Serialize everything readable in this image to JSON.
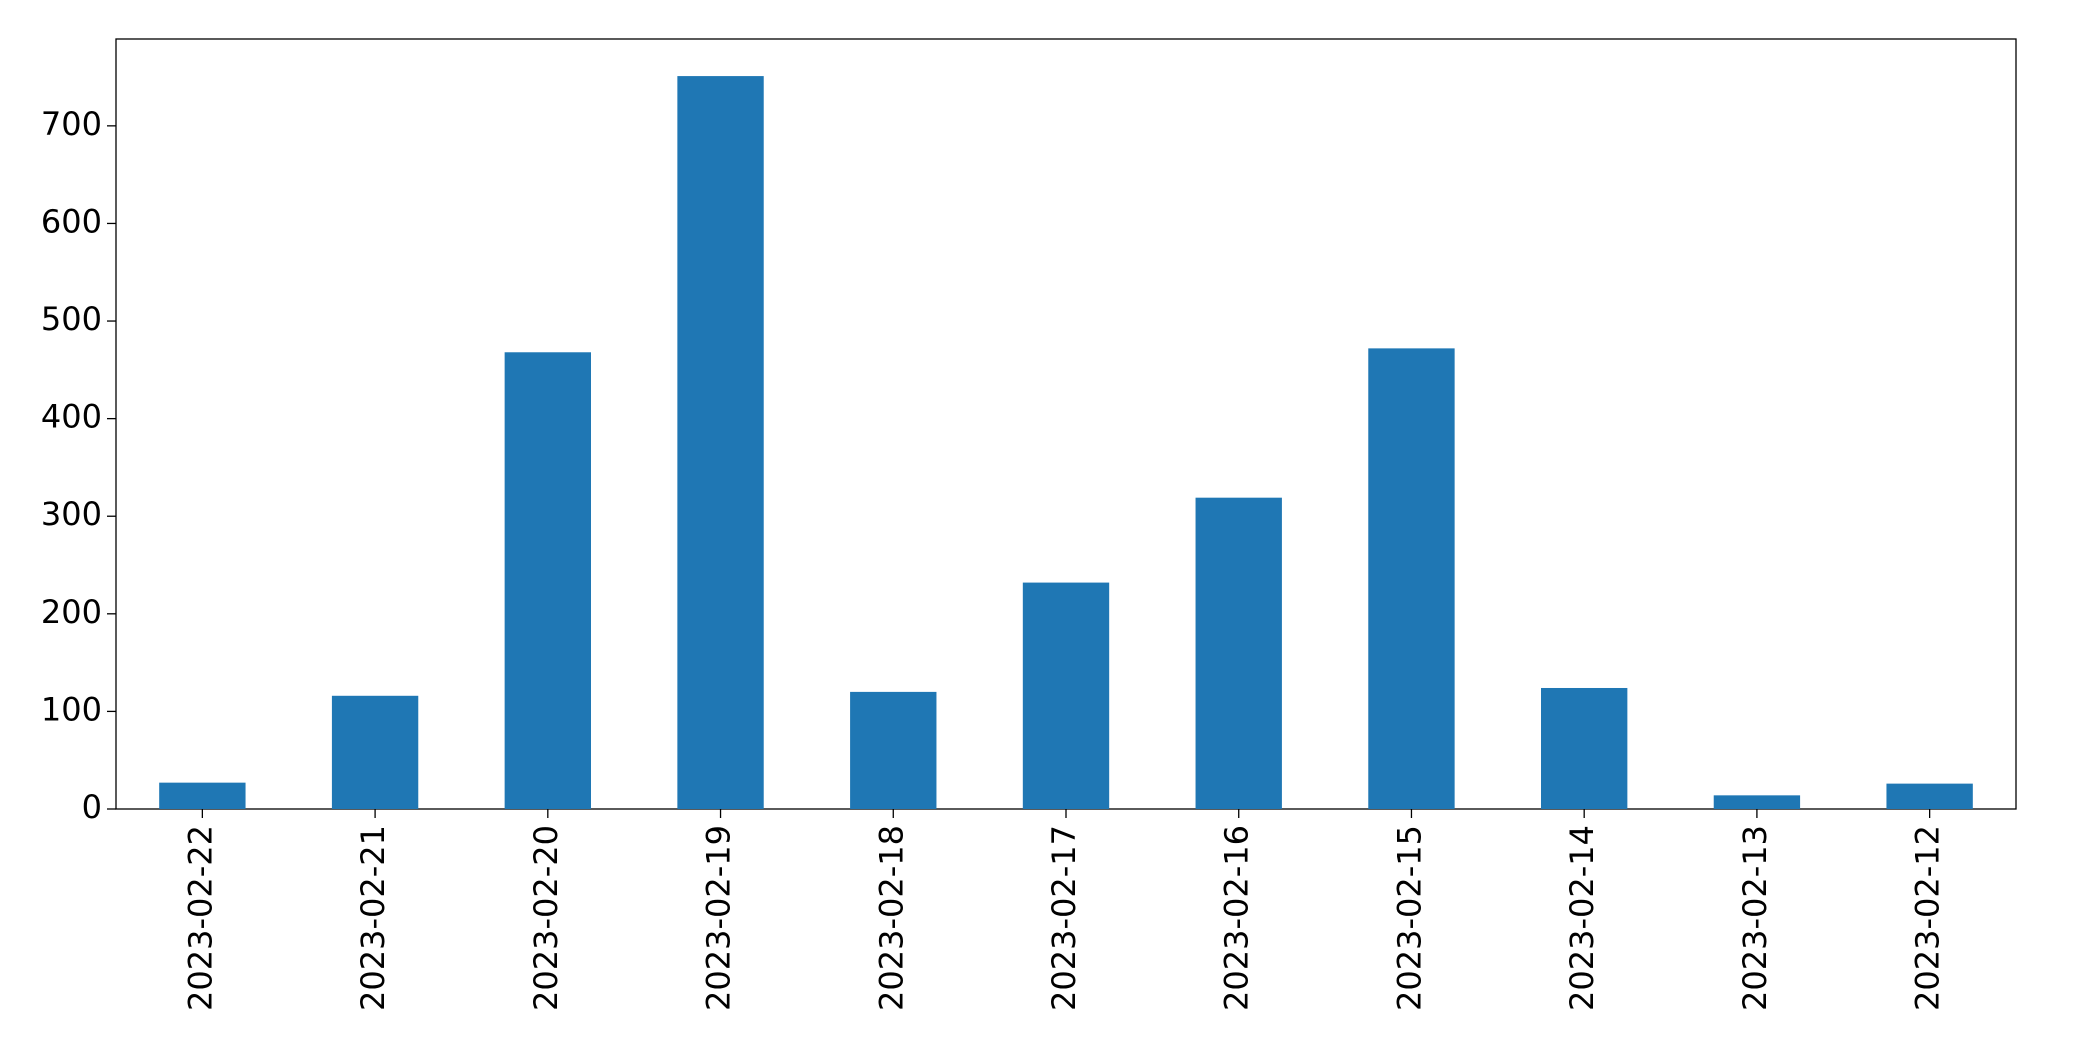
{
  "chart_data": {
    "type": "bar",
    "categories": [
      "2023-02-22",
      "2023-02-21",
      "2023-02-20",
      "2023-02-19",
      "2023-02-18",
      "2023-02-17",
      "2023-02-16",
      "2023-02-15",
      "2023-02-14",
      "2023-02-13",
      "2023-02-12"
    ],
    "values": [
      27,
      116,
      468,
      751,
      120,
      232,
      319,
      472,
      124,
      14,
      26
    ],
    "color": "#1f77b4",
    "ylim": [
      0,
      789
    ],
    "yticks": [
      0,
      100,
      200,
      300,
      400,
      500,
      600,
      700
    ],
    "grid": false
  }
}
